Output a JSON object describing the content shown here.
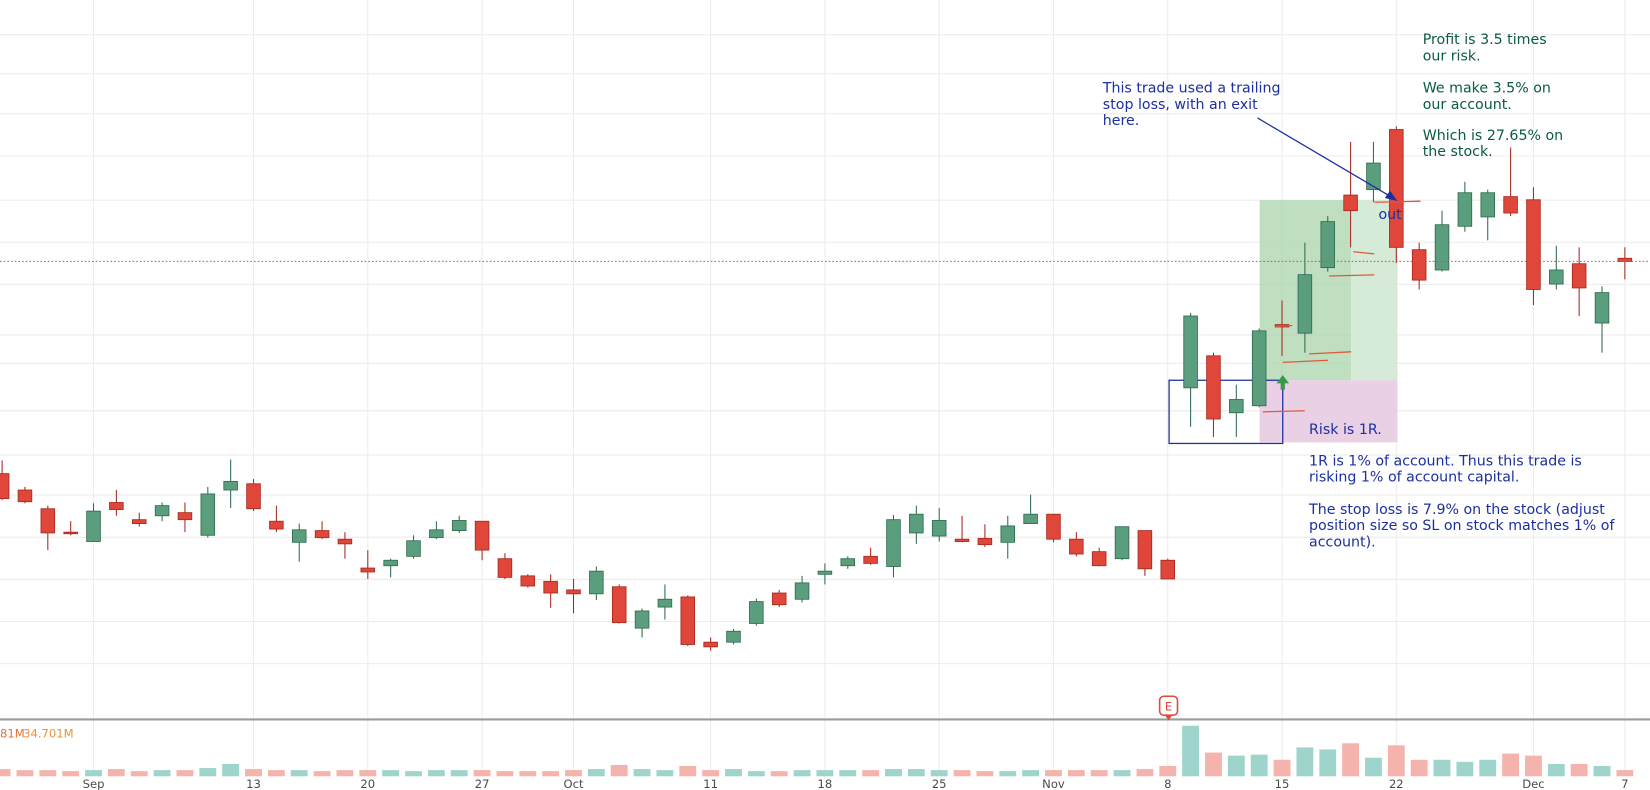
{
  "chart_data": {
    "type": "candlestick",
    "categories": [
      null,
      null,
      null,
      null,
      "Sep",
      null,
      null,
      null,
      null,
      null,
      null,
      "13",
      null,
      null,
      null,
      null,
      "20",
      null,
      null,
      null,
      null,
      "27",
      null,
      null,
      null,
      "Oct",
      null,
      null,
      null,
      null,
      null,
      "11",
      null,
      null,
      null,
      null,
      "18",
      null,
      null,
      null,
      null,
      "25",
      null,
      null,
      null,
      null,
      "Nov",
      null,
      null,
      null,
      null,
      "8",
      null,
      null,
      null,
      null,
      "15",
      null,
      null,
      null,
      null,
      "22",
      null,
      null,
      null,
      null,
      null,
      "Dec",
      null,
      null,
      null,
      "7"
    ],
    "open": [
      90.6,
      88.5,
      86.1,
      83.1,
      81.9,
      86.9,
      84.7,
      85.2,
      85.6,
      82.7,
      88.5,
      89.3,
      84.5,
      81.8,
      83.3,
      82.2,
      78.5,
      78.8,
      80.0,
      82.4,
      83.3,
      84.5,
      79.7,
      77.5,
      76.8,
      75.7,
      75.2,
      76.1,
      70.8,
      73.5,
      74.8,
      69.0,
      69.0,
      71.4,
      75.3,
      74.5,
      77.7,
      78.8,
      80.0,
      78.7,
      83.0,
      82.6,
      82.2,
      82.3,
      81.8,
      84.2,
      85.4,
      82.2,
      80.6,
      79.7,
      83.3,
      79.5,
      101.6,
      105.7,
      98.4,
      99.3,
      109.7,
      108.6,
      117.0,
      126.3,
      127.0,
      134.7,
      119.3,
      116.7,
      122.3,
      123.5,
      126.1,
      125.7,
      114.9,
      117.5,
      109.9,
      118.2
    ],
    "high": [
      92.3,
      88.9,
      86.5,
      84.5,
      86.8,
      88.5,
      85.6,
      86.9,
      86.9,
      88.9,
      92.4,
      89.9,
      86.5,
      84.2,
      84.5,
      83.1,
      80.8,
      79.7,
      82.7,
      84.5,
      85.2,
      84.5,
      80.4,
      77.7,
      77.7,
      77.1,
      78.7,
      76.4,
      73.3,
      76.4,
      75.0,
      69.6,
      70.7,
      74.6,
      75.7,
      77.5,
      79.1,
      80.0,
      81.1,
      85.3,
      86.5,
      86.2,
      85.2,
      84.1,
      85.2,
      87.9,
      85.4,
      83.1,
      81.1,
      83.8,
      83.3,
      79.7,
      111.2,
      106.1,
      102.0,
      109.2,
      112.8,
      120.2,
      123.6,
      133.1,
      133.1,
      135.1,
      120.2,
      124.3,
      128.0,
      127.0,
      132.4,
      127.3,
      119.8,
      119.6,
      114.6,
      119.6
    ],
    "low": [
      87.2,
      86.8,
      80.8,
      82.7,
      81.9,
      85.2,
      83.8,
      84.5,
      83.1,
      82.4,
      86.2,
      85.8,
      83.1,
      79.3,
      82.2,
      79.7,
      77.1,
      77.3,
      79.7,
      82.2,
      83.0,
      79.5,
      77.1,
      76.0,
      73.4,
      72.7,
      74.4,
      71.4,
      69.6,
      71.9,
      68.5,
      67.9,
      68.7,
      71.1,
      73.5,
      74.1,
      76.4,
      78.4,
      78.9,
      77.3,
      81.6,
      81.9,
      81.8,
      81.2,
      79.7,
      84.2,
      81.8,
      80.0,
      78.7,
      79.5,
      77.5,
      77.1,
      96.6,
      95.3,
      95.3,
      99.1,
      105.7,
      106.1,
      116.5,
      119.6,
      125.4,
      117.6,
      114.2,
      116.5,
      121.6,
      120.5,
      123.6,
      112.2,
      114.2,
      110.8,
      106.1,
      115.5
    ],
    "close": [
      87.4,
      87.0,
      83.0,
      82.9,
      85.8,
      86.0,
      84.2,
      86.5,
      84.7,
      88.0,
      89.6,
      86.1,
      83.5,
      83.4,
      82.4,
      81.6,
      78.0,
      79.5,
      82.0,
      83.4,
      84.6,
      80.8,
      77.3,
      76.2,
      75.3,
      75.2,
      78.1,
      71.5,
      73.0,
      74.5,
      68.7,
      68.4,
      70.4,
      74.2,
      73.8,
      76.6,
      78.1,
      79.7,
      79.1,
      84.7,
      85.4,
      84.6,
      81.9,
      81.5,
      83.9,
      85.4,
      82.2,
      80.3,
      78.8,
      83.8,
      78.4,
      77.1,
      110.8,
      97.6,
      100.1,
      108.9,
      109.4,
      116.1,
      122.9,
      124.3,
      130.4,
      119.6,
      115.4,
      122.5,
      126.6,
      126.6,
      124.0,
      114.2,
      116.7,
      114.4,
      113.8,
      117.8
    ],
    "volume": [
      14,
      12,
      12,
      10,
      12,
      14,
      10,
      12,
      12,
      16,
      24,
      14,
      12,
      12,
      10,
      12,
      12,
      12,
      10,
      12,
      12,
      12,
      10,
      10,
      10,
      12,
      14,
      22,
      14,
      12,
      20,
      12,
      14,
      10,
      10,
      12,
      12,
      12,
      12,
      14,
      14,
      12,
      12,
      10,
      10,
      12,
      12,
      12,
      12,
      12,
      14,
      20,
      98,
      46,
      40,
      42,
      32,
      56,
      52,
      64,
      36,
      60,
      32,
      32,
      28,
      32,
      44,
      40,
      24,
      24,
      20,
      12
    ],
    "ylim": [
      59.1,
      151.3
    ],
    "vlim": [
      0,
      100
    ],
    "colors": {
      "up": "#5b9e7e",
      "down": "#e0473a",
      "up_volume": "#9ed4cc",
      "down_volume": "#f4b3ad"
    },
    "volume_legend": [
      "81M",
      "34.701M"
    ],
    "earnings_marker": "E",
    "annotations": {
      "trail": [
        "This trade used a trailing",
        "stop loss, with an exit",
        "here."
      ],
      "profit": [
        [
          "Profit is 3.5 times",
          "our risk."
        ],
        [
          "We make 3.5% on",
          "our account."
        ],
        [
          "Which is 27.65% on",
          "the stock."
        ]
      ],
      "out": "out",
      "risk": "Risk is 1R.",
      "account": [
        "1R is 1% of account. Thus this trade is",
        "risking 1% of account capital."
      ],
      "stop": [
        "The stop loss is 7.9% on the stock (adjust",
        "position size so SL on stock matches 1% of",
        "account)."
      ]
    }
  }
}
